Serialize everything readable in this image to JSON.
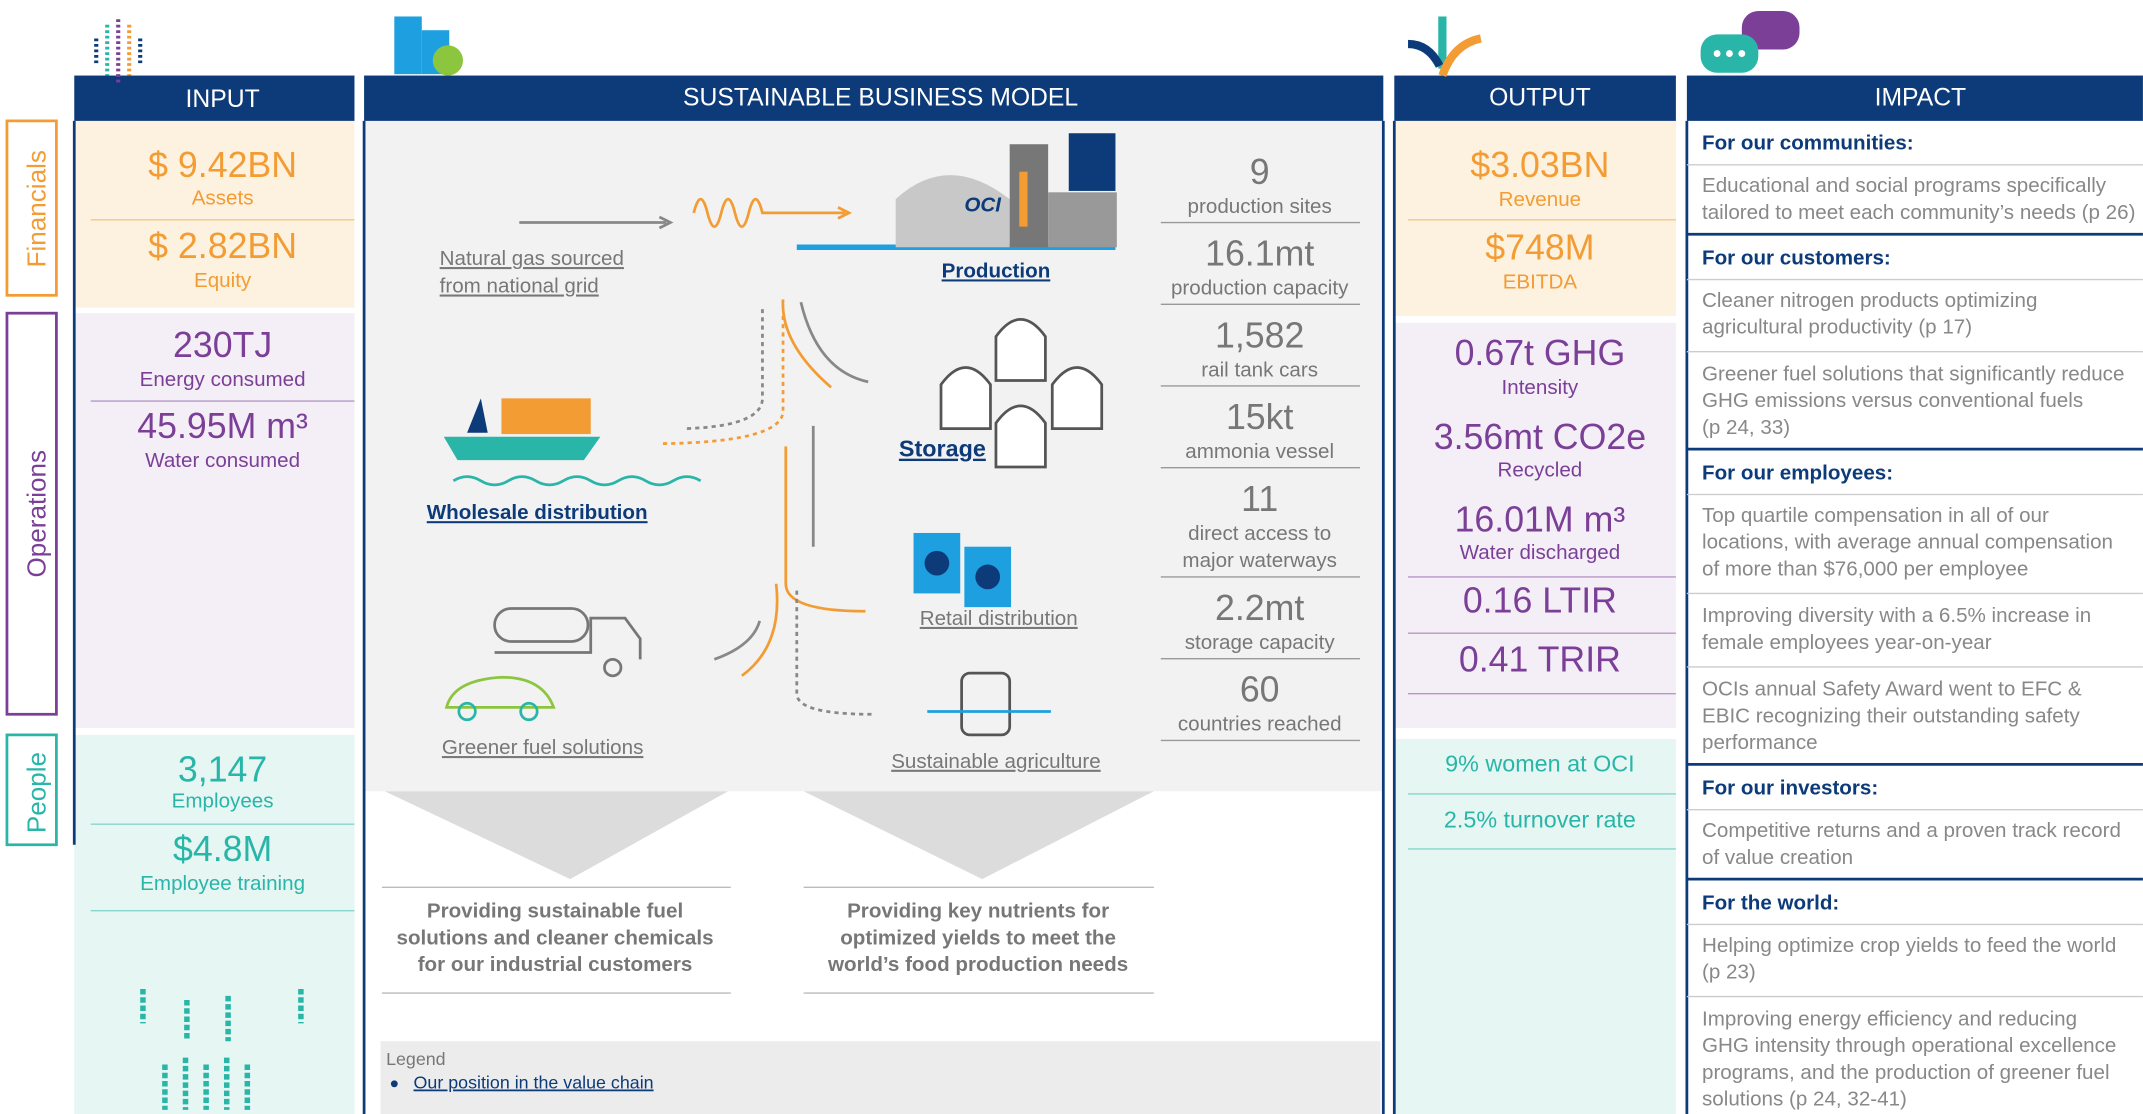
{
  "input": {
    "header": "INPUT",
    "groups": [
      {
        "name": "Financials",
        "items": [
          {
            "value": "$ 9.42BN",
            "label": "Assets"
          },
          {
            "value": "$ 2.82BN",
            "label": "Equity"
          }
        ]
      },
      {
        "name": "Operations",
        "items": [
          {
            "value": "230TJ",
            "label": "Energy consumed"
          },
          {
            "value": "45.95M m³",
            "label": "Water consumed"
          }
        ]
      },
      {
        "name": "People",
        "items": [
          {
            "value": "3,147",
            "label": "Employees"
          },
          {
            "value": "$4.8M",
            "label": "Employee training"
          }
        ]
      }
    ]
  },
  "model": {
    "header": "SUSTAINABLE BUSINESS MODEL",
    "nodes": [
      {
        "label": [
          "Natural gas sourced",
          "from national grid"
        ]
      },
      {
        "label": [
          "Production"
        ]
      },
      {
        "label": [
          "Storage"
        ]
      },
      {
        "label": [
          "Wholesale distribution"
        ]
      },
      {
        "label": [
          "Retail distribution"
        ]
      },
      {
        "label": [
          "Greener fuel solutions"
        ]
      },
      {
        "label": [
          "Sustainable agriculture"
        ]
      }
    ],
    "stats": [
      {
        "value": "9",
        "label": [
          "production sites"
        ]
      },
      {
        "value": "16.1mt",
        "label": [
          "production capacity"
        ]
      },
      {
        "value": "1,582",
        "label": [
          "rail tank cars"
        ]
      },
      {
        "value": "15kt",
        "label": [
          "ammonia vessel"
        ]
      },
      {
        "value": "11",
        "label": [
          "direct access to",
          "major waterways"
        ]
      },
      {
        "value": "2.2mt",
        "label": [
          "storage capacity"
        ]
      },
      {
        "value": "60",
        "label": [
          "countries reached"
        ]
      }
    ],
    "outcomes": [
      [
        "Providing sustainable fuel",
        "solutions and cleaner chemicals",
        "for our industrial customers"
      ],
      [
        "Providing key nutrients for",
        "optimized yields to meet the",
        "world’s food production needs"
      ]
    ],
    "legend": {
      "title": "Legend",
      "items": [
        "Our position in the value chain"
      ]
    }
  },
  "output": {
    "header": "OUTPUT",
    "groups": [
      {
        "items": [
          {
            "value": "$3.03BN",
            "label": "Revenue"
          },
          {
            "value": "$748M",
            "label": "EBITDA"
          }
        ]
      },
      {
        "items": [
          {
            "value": "0.67t GHG",
            "label": "Intensity"
          },
          {
            "value": "3.56mt CO2e",
            "label": "Recycled"
          },
          {
            "value": "16.01M m³",
            "label": "Water discharged"
          },
          {
            "value": "0.16 LTIR"
          },
          {
            "value": "0.41 TRIR"
          }
        ]
      },
      {
        "items": [
          {
            "value": "9% women at OCI"
          },
          {
            "value": "2.5% turnover rate"
          }
        ]
      }
    ]
  },
  "impact": {
    "header": "IMPACT",
    "sections": [
      {
        "heading": "For our communities:",
        "items": [
          [
            "Educational and social programs specifically",
            "tailored to meet each community’s needs (p 26)"
          ]
        ]
      },
      {
        "heading": "For our customers:",
        "items": [
          [
            "Cleaner nitrogen products optimizing",
            "agricultural productivity (p 17)"
          ],
          [
            "Greener fuel solutions that significantly reduce",
            "GHG emissions versus conventional fuels",
            "(p 24, 33)"
          ]
        ]
      },
      {
        "heading": "For our employees:",
        "items": [
          [
            "Top quartile compensation in all of our",
            "locations, with average annual compensation",
            "of more than $76,000 per employee"
          ],
          [
            "Improving diversity with a 6.5% increase in",
            "female employees year-on-year"
          ],
          [
            "OCIs annual Safety Award went to EFC &",
            "EBIC recognizing their outstanding safety",
            "performance"
          ]
        ]
      },
      {
        "heading": "For our investors:",
        "items": [
          [
            "Competitive returns and a proven track record",
            "of value creation"
          ]
        ]
      },
      {
        "heading": "For the world:",
        "items": [
          [
            "Helping optimize crop yields to feed the world",
            "(p 23)"
          ],
          [
            "Improving energy efficiency and reducing",
            "GHG intensity through operational excellence",
            "programs, and the production of greener fuel",
            "solutions (p 24, 32-41)"
          ]
        ]
      }
    ]
  }
}
